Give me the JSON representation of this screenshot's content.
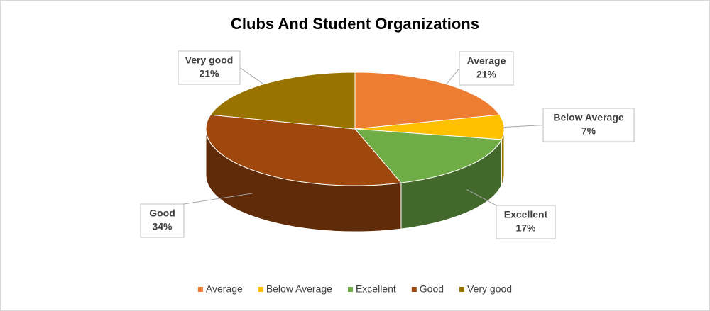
{
  "chart_data": {
    "type": "pie",
    "title": "Clubs And Student Organizations",
    "categories": [
      "Average",
      "Below Average",
      "Excellent",
      "Good",
      "Very good"
    ],
    "values": [
      21,
      7,
      17,
      34,
      21
    ],
    "value_labels": [
      "21%",
      "7%",
      "17%",
      "34%",
      "21%"
    ],
    "colors": [
      "#ed7d31",
      "#ffc000",
      "#70ad47",
      "#9e480e",
      "#997300"
    ],
    "legend": "bottom"
  }
}
